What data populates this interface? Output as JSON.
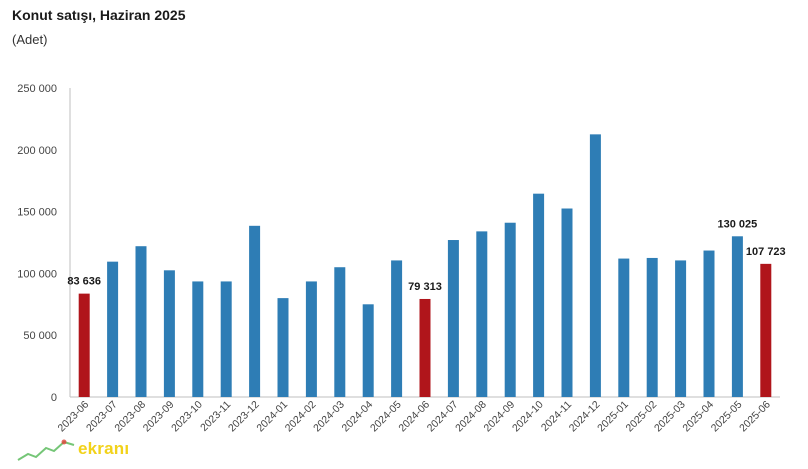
{
  "title": "Konut satışı, Haziran 2025",
  "subtitle": "(Adet)",
  "watermark": {
    "text": "ekranı"
  },
  "colors": {
    "normal": "#2E7DB5",
    "highlight": "#B0151B",
    "axis": "#BFBFBF"
  },
  "chart_data": {
    "type": "bar",
    "title": "Konut satışı, Haziran 2025",
    "xlabel": "",
    "ylabel": "",
    "ylim": [
      0,
      250000
    ],
    "yticks": [
      0,
      50000,
      100000,
      150000,
      200000,
      250000
    ],
    "ytick_labels": [
      "0",
      "50 000",
      "100 000",
      "150 000",
      "200 000",
      "250 000"
    ],
    "grid": false,
    "legend": "none",
    "categories": [
      "2023-06",
      "2023-07",
      "2023-08",
      "2023-09",
      "2023-10",
      "2023-11",
      "2023-12",
      "2024-01",
      "2024-02",
      "2024-03",
      "2024-04",
      "2024-05",
      "2024-06",
      "2024-07",
      "2024-08",
      "2024-09",
      "2024-10",
      "2024-11",
      "2024-12",
      "2025-01",
      "2025-02",
      "2025-03",
      "2025-04",
      "2025-05",
      "2025-06"
    ],
    "values": [
      83636,
      109500,
      122000,
      102500,
      93500,
      93500,
      138500,
      80000,
      93500,
      105000,
      75000,
      110500,
      79313,
      127000,
      134000,
      141000,
      164500,
      152500,
      212500,
      112000,
      112500,
      110500,
      118500,
      130025,
      107723
    ],
    "highlighted": [
      0,
      12,
      24
    ],
    "data_labels": [
      {
        "index": 0,
        "text": "83 636"
      },
      {
        "index": 12,
        "text": "79 313"
      },
      {
        "index": 23,
        "text": "130 025"
      },
      {
        "index": 24,
        "text": "107 723"
      }
    ]
  }
}
